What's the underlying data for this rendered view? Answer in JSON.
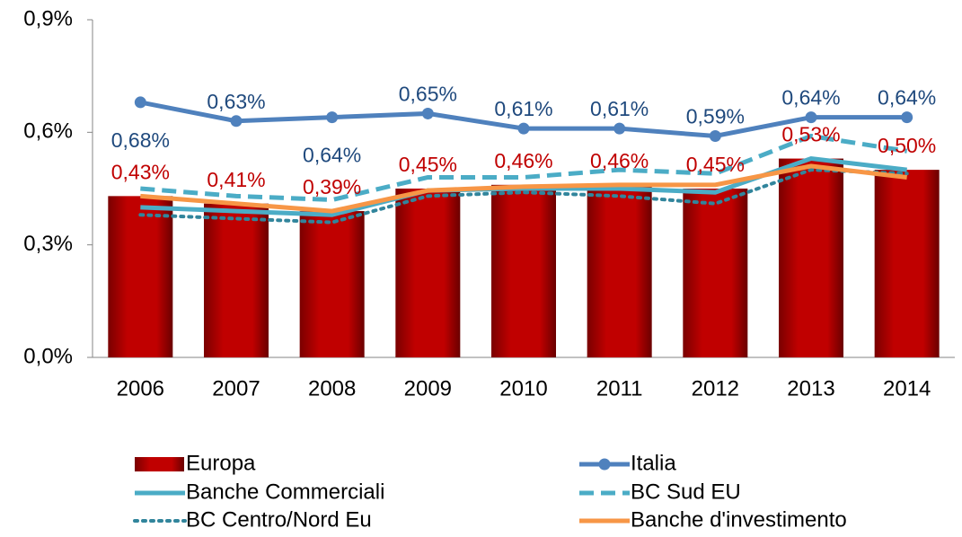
{
  "chart_data": {
    "type": "bar-line",
    "categories": [
      "2006",
      "2007",
      "2008",
      "2009",
      "2010",
      "2011",
      "2012",
      "2013",
      "2014"
    ],
    "ylim": [
      0,
      0.9
    ],
    "yticks": [
      {
        "value": 0,
        "label": "0,0%"
      },
      {
        "value": 0.3,
        "label": "0,3%"
      },
      {
        "value": 0.6,
        "label": "0,6%"
      },
      {
        "value": 0.9,
        "label": "0,9%"
      }
    ],
    "grid": false,
    "series": [
      {
        "name": "Europa",
        "type": "bar",
        "color": "#c00000",
        "label_color": "#c00000",
        "values": [
          0.43,
          0.41,
          0.39,
          0.45,
          0.46,
          0.46,
          0.45,
          0.53,
          0.5
        ],
        "value_labels": [
          "0,43%",
          "0,41%",
          "0,39%",
          "0,45%",
          "0,46%",
          "0,46%",
          "0,45%",
          "0,53%",
          "0,50%"
        ]
      },
      {
        "name": "Italia",
        "type": "line",
        "color": "#4f81bd",
        "label_color": "#1f497d",
        "markers": true,
        "values": [
          0.68,
          0.63,
          0.64,
          0.65,
          0.61,
          0.61,
          0.59,
          0.64,
          0.64
        ],
        "value_labels": [
          "0,68%",
          "0,63%",
          "0,64%",
          "0,65%",
          "0,61%",
          "0,61%",
          "0,59%",
          "0,64%",
          "0,64%"
        ]
      },
      {
        "name": "Banche Commerciali",
        "type": "line",
        "color": "#4bacc6",
        "dash": "solid",
        "values": [
          0.4,
          0.39,
          0.38,
          0.445,
          0.45,
          0.45,
          0.44,
          0.53,
          0.5
        ]
      },
      {
        "name": "BC Sud EU",
        "type": "line",
        "color": "#4bacc6",
        "dash": "dashed",
        "values": [
          0.45,
          0.43,
          0.42,
          0.48,
          0.48,
          0.5,
          0.49,
          0.59,
          0.55
        ]
      },
      {
        "name": "BC Centro/Nord Eu",
        "type": "line",
        "color": "#31859c",
        "dash": "dotted",
        "values": [
          0.38,
          0.37,
          0.36,
          0.43,
          0.44,
          0.43,
          0.41,
          0.5,
          0.49
        ]
      },
      {
        "name": "Banche d'investimento",
        "type": "line",
        "color": "#f79646",
        "dash": "solid",
        "values": [
          0.43,
          0.41,
          0.39,
          0.445,
          0.455,
          0.46,
          0.46,
          0.51,
          0.48
        ]
      }
    ]
  }
}
